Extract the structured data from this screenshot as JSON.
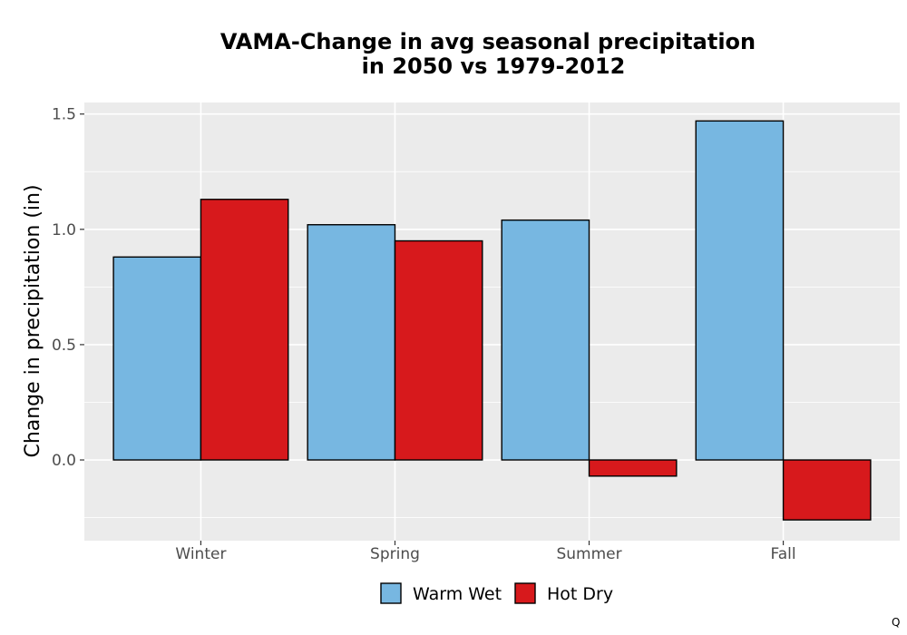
{
  "chart_data": {
    "type": "bar",
    "title": "VAMA-Change in avg seasonal precipitation",
    "subtitle": "in 2050 vs 1979-2012",
    "xlabel": "",
    "ylabel": "Change in precipitation (in)",
    "categories": [
      "Winter",
      "Spring",
      "Summer",
      "Fall"
    ],
    "series": [
      {
        "name": "Warm Wet",
        "values": [
          0.88,
          1.02,
          1.04,
          1.47
        ],
        "color": "#77b7e1"
      },
      {
        "name": "Hot Dry",
        "values": [
          1.13,
          0.95,
          -0.07,
          -0.26
        ],
        "color": "#d7191c"
      }
    ],
    "ylim": [
      -0.35,
      1.55
    ],
    "yticks": [
      0.0,
      0.5,
      1.0,
      1.5
    ],
    "ytick_labels": [
      "0.0",
      "0.5",
      "1.0",
      "1.5"
    ],
    "grid": true,
    "legend_position": "bottom",
    "panel_background": "#ebebeb"
  },
  "corner_mark": "Q"
}
